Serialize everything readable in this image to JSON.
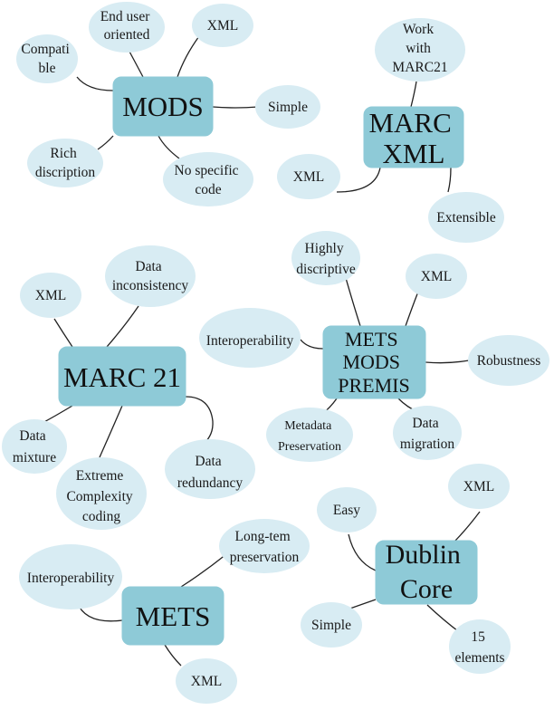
{
  "colors": {
    "hub_fill": "#8ecad7",
    "leaf_fill": "#d8ecf3",
    "line": "#222222"
  },
  "clusters": {
    "mods": {
      "hub": [
        "MODS"
      ],
      "leaves": {
        "end_user": [
          "End user",
          "oriented"
        ],
        "xml": [
          "XML"
        ],
        "compatible": [
          "Compati",
          "ble"
        ],
        "simple": [
          "Simple"
        ],
        "rich": [
          "Rich",
          "discription"
        ],
        "no_code": [
          "No specific",
          "code"
        ]
      }
    },
    "marcxml": {
      "hub": [
        "MARC",
        "XML"
      ],
      "leaves": {
        "work_with": [
          "Work",
          "with",
          "MARC21"
        ],
        "xml": [
          "XML"
        ],
        "extensible": [
          "Extensible"
        ]
      }
    },
    "marc21": {
      "hub": [
        "MARC 21"
      ],
      "leaves": {
        "xml": [
          "XML"
        ],
        "inconsistency": [
          "Data",
          "inconsistency"
        ],
        "mixture": [
          "Data",
          "mixture"
        ],
        "complexity": [
          "Extreme",
          "Complexity",
          "coding"
        ],
        "redundancy": [
          "Data",
          "redundancy"
        ]
      }
    },
    "mmp": {
      "hub": [
        "METS",
        "MODS",
        "PREMIS"
      ],
      "leaves": {
        "descriptive": [
          "Highly",
          "discriptive"
        ],
        "xml": [
          "XML"
        ],
        "interop": [
          "Interoperability"
        ],
        "robustness": [
          "Robustness"
        ],
        "preservation": [
          "Metadata",
          "Preservation"
        ],
        "migration": [
          "Data",
          "migration"
        ]
      }
    },
    "mets": {
      "hub": [
        "METS"
      ],
      "leaves": {
        "longterm": [
          "Long-tem",
          "preservation"
        ],
        "interop": [
          "Interoperability"
        ],
        "xml": [
          "XML"
        ]
      }
    },
    "dc": {
      "hub": [
        "Dublin",
        "Core"
      ],
      "leaves": {
        "easy": [
          "Easy"
        ],
        "xml": [
          "XML"
        ],
        "simple": [
          "Simple"
        ],
        "elements": [
          "15",
          "elements"
        ]
      }
    }
  }
}
